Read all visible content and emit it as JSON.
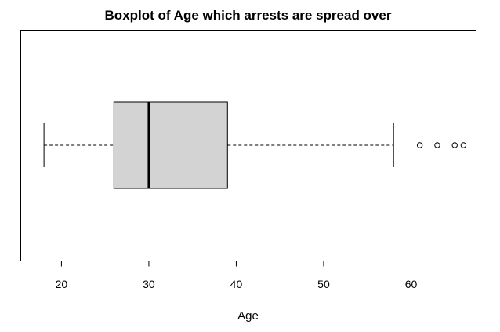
{
  "chart_data": {
    "type": "boxplot",
    "orientation": "horizontal",
    "title": "Boxplot of Age which arrests are spread over",
    "xlabel": "Age",
    "ylabel": "",
    "x_ticks": [
      20,
      30,
      40,
      50,
      60
    ],
    "xlim": [
      15.3,
      67.4
    ],
    "box": {
      "whisker_low": 18,
      "q1": 26,
      "median": 30,
      "q3": 39,
      "whisker_high": 58
    },
    "outliers": [
      61,
      63,
      65,
      66
    ],
    "grid": false,
    "legend": "none",
    "colors": {
      "box_fill": "#d3d3d3",
      "stroke": "#000000",
      "background": "#ffffff"
    }
  }
}
